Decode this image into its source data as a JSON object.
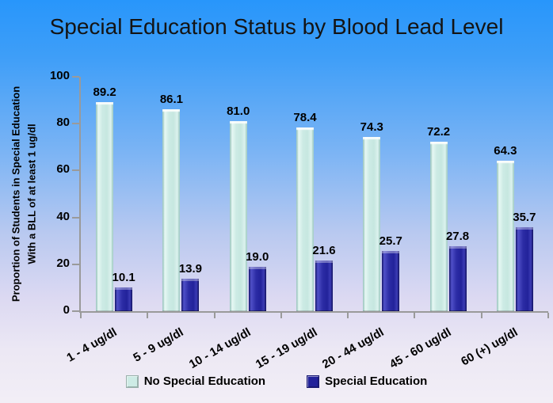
{
  "chart_data": {
    "type": "bar",
    "title": "Special Education Status by Blood Lead Level",
    "categories": [
      "1 - 4 ug/dl",
      "5 - 9 ug/dl",
      "10 - 14 ug/dl",
      "15 - 19 ug/dl",
      "20 - 44 ug/dl",
      "45 - 60 ug/dl",
      "60 (+) ug/dl"
    ],
    "series": [
      {
        "name": "No Special Education",
        "color": "#cdebe5",
        "values": [
          89.2,
          86.1,
          81.0,
          78.4,
          74.3,
          72.2,
          64.3
        ]
      },
      {
        "name": "Special Education",
        "color": "#22229a",
        "values": [
          10.1,
          13.9,
          19.0,
          21.6,
          25.7,
          27.8,
          35.7
        ]
      }
    ],
    "ylabel_lines": [
      "Proportion of Students in Special Education",
      "With a BLL of at least 1 ug/dl"
    ],
    "ylim": [
      0,
      100
    ],
    "yticks": [
      0,
      20,
      40,
      60,
      80,
      100
    ],
    "value_label_decimals": 1,
    "grid": false,
    "legend_position": "bottom"
  },
  "colors": {
    "background_top": "#2896fb",
    "background_bottom": "#f2eef6",
    "axis": "#9a9a9a",
    "text": "#000000",
    "title_text": "#141414",
    "bar_no_special_education": "#cdebe5",
    "bar_special_education": "#22229a"
  }
}
